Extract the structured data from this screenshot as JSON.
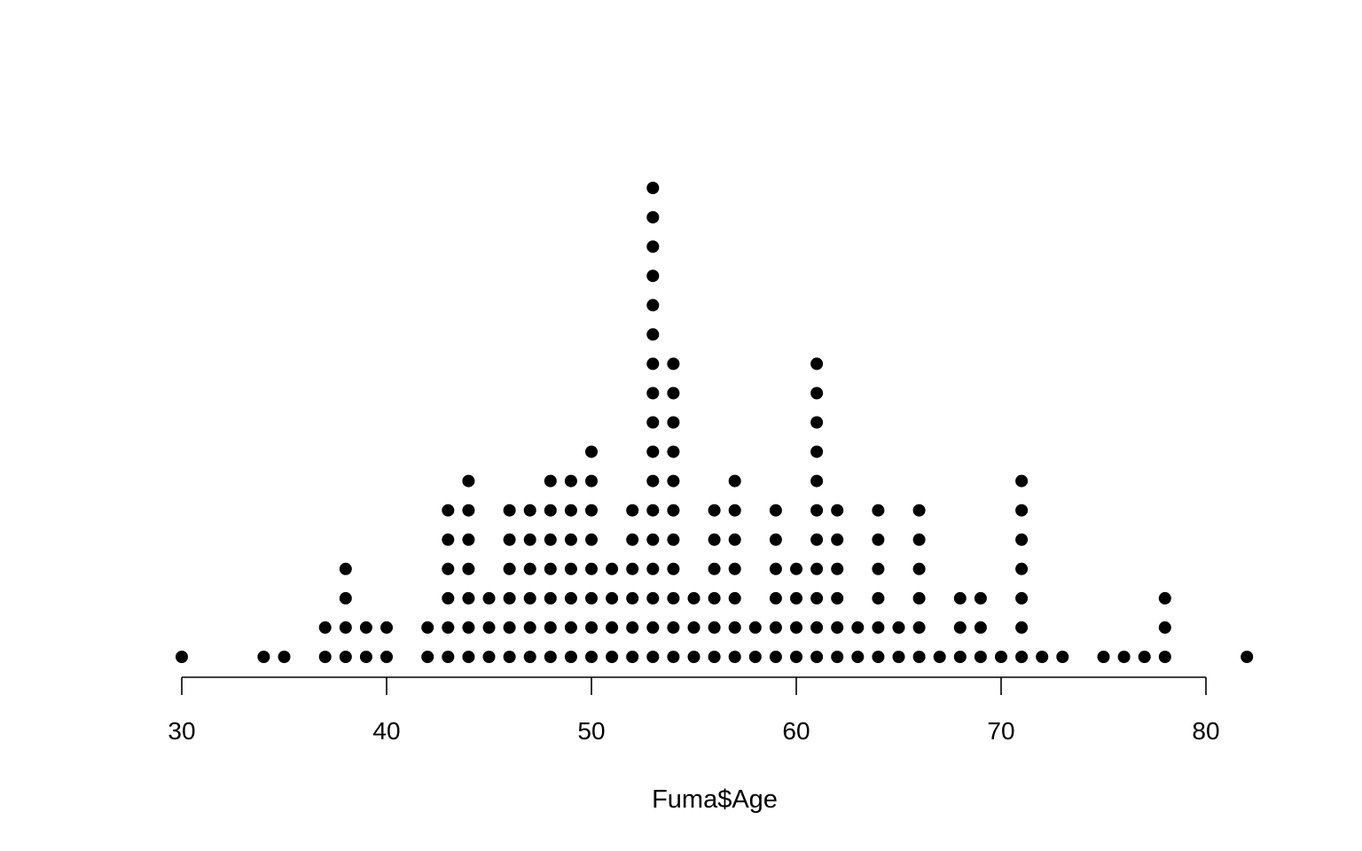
{
  "chart_data": {
    "type": "scatter",
    "subtype": "dot-plot",
    "title": "",
    "xlabel": "Fuma$Age",
    "ylabel": "",
    "xlim": [
      30,
      80
    ],
    "xticks": [
      "30",
      "40",
      "50",
      "60",
      "70",
      "80"
    ],
    "grid": false,
    "dot_color": "#000000",
    "counts": [
      {
        "x": 30,
        "n": 1
      },
      {
        "x": 34,
        "n": 1
      },
      {
        "x": 35,
        "n": 1
      },
      {
        "x": 37,
        "n": 2
      },
      {
        "x": 38,
        "n": 4
      },
      {
        "x": 39,
        "n": 2
      },
      {
        "x": 40,
        "n": 2
      },
      {
        "x": 42,
        "n": 2
      },
      {
        "x": 43,
        "n": 6
      },
      {
        "x": 44,
        "n": 7
      },
      {
        "x": 45,
        "n": 3
      },
      {
        "x": 46,
        "n": 6
      },
      {
        "x": 47,
        "n": 6
      },
      {
        "x": 48,
        "n": 7
      },
      {
        "x": 49,
        "n": 7
      },
      {
        "x": 50,
        "n": 8
      },
      {
        "x": 51,
        "n": 4
      },
      {
        "x": 52,
        "n": 6
      },
      {
        "x": 53,
        "n": 17
      },
      {
        "x": 54,
        "n": 11
      },
      {
        "x": 55,
        "n": 3
      },
      {
        "x": 56,
        "n": 6
      },
      {
        "x": 57,
        "n": 7
      },
      {
        "x": 58,
        "n": 2
      },
      {
        "x": 59,
        "n": 6
      },
      {
        "x": 60,
        "n": 4
      },
      {
        "x": 61,
        "n": 11
      },
      {
        "x": 62,
        "n": 6
      },
      {
        "x": 63,
        "n": 2
      },
      {
        "x": 64,
        "n": 6
      },
      {
        "x": 65,
        "n": 2
      },
      {
        "x": 66,
        "n": 6
      },
      {
        "x": 67,
        "n": 1
      },
      {
        "x": 68,
        "n": 3
      },
      {
        "x": 69,
        "n": 3
      },
      {
        "x": 70,
        "n": 1
      },
      {
        "x": 71,
        "n": 7
      },
      {
        "x": 72,
        "n": 1
      },
      {
        "x": 73,
        "n": 1
      },
      {
        "x": 75,
        "n": 1
      },
      {
        "x": 76,
        "n": 1
      },
      {
        "x": 77,
        "n": 1
      },
      {
        "x": 78,
        "n": 3
      },
      {
        "x": 82,
        "n": 1
      }
    ]
  }
}
